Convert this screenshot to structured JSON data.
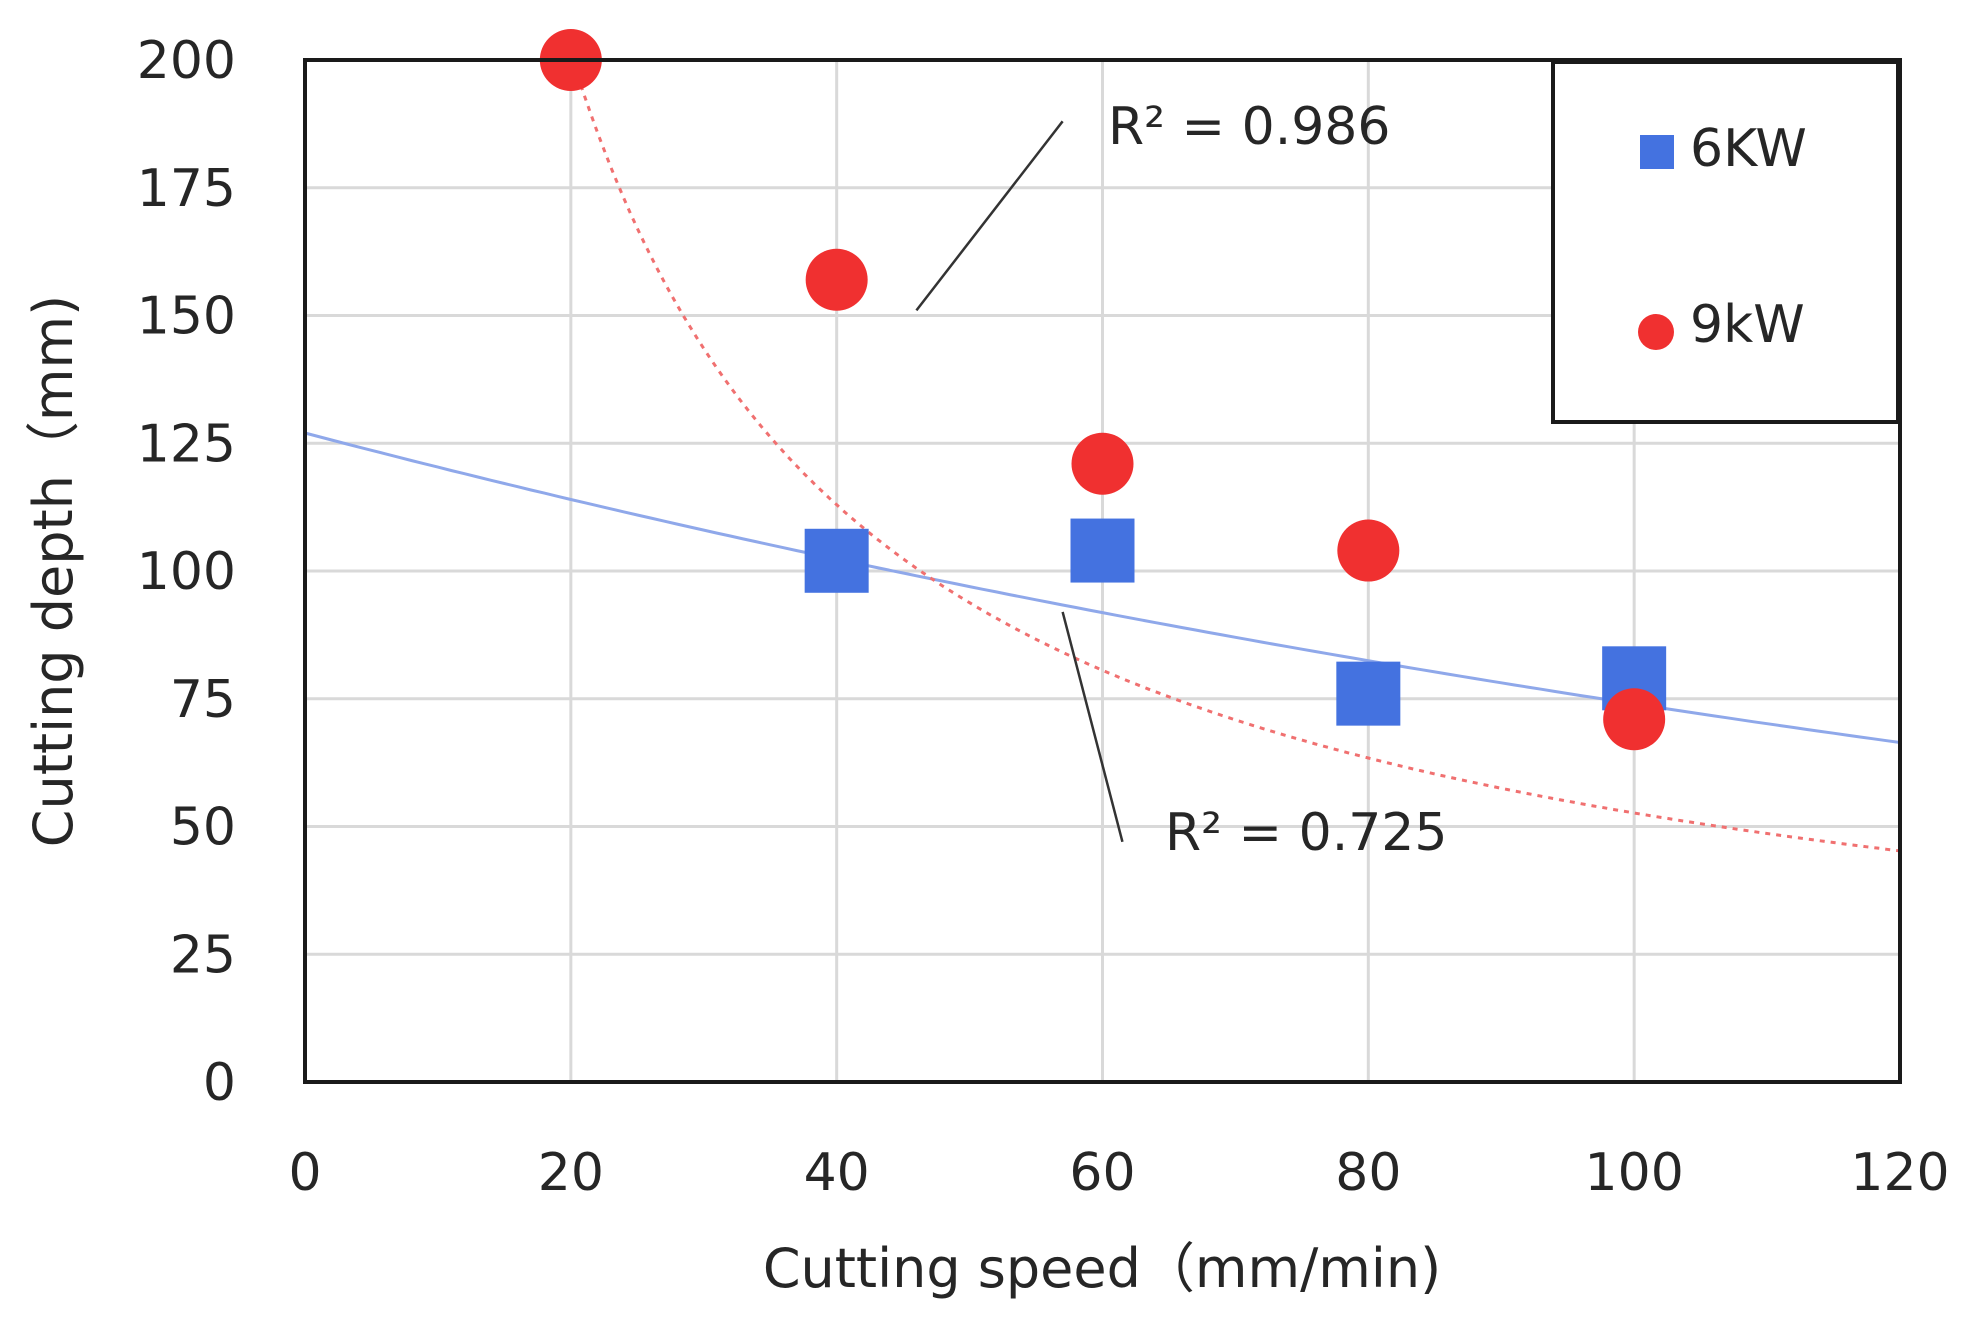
{
  "chart_data": {
    "type": "scatter",
    "title": "",
    "xlabel": "Cutting speed（mm/min)",
    "ylabel": "Cutting depth（mm)",
    "xlim": [
      0,
      120
    ],
    "ylim": [
      0,
      200
    ],
    "xticks": [
      0,
      20,
      40,
      60,
      80,
      100,
      120
    ],
    "yticks": [
      0,
      25,
      50,
      75,
      100,
      125,
      150,
      175,
      200
    ],
    "grid": true,
    "legend_position": "top-right",
    "series": [
      {
        "name": "6KW",
        "marker": "square",
        "color": "#4472e0",
        "x": [
          40,
          60,
          80,
          100
        ],
        "y": [
          102,
          104,
          76,
          79
        ],
        "trendline": {
          "type": "exponential",
          "a": 127,
          "b": -0.0054,
          "style": "solid",
          "color": "#8fa8ea",
          "r2_label": "R² = 0.725"
        }
      },
      {
        "name": "9kW",
        "marker": "circle",
        "color": "#f03030",
        "x": [
          20,
          40,
          60,
          80,
          100
        ],
        "y": [
          200,
          157,
          121,
          104,
          71
        ],
        "trendline": {
          "type": "power",
          "a": 2440,
          "b": -0.833,
          "style": "dotted",
          "color": "#f07070",
          "r2_label": "R² = 0.986"
        }
      }
    ]
  }
}
